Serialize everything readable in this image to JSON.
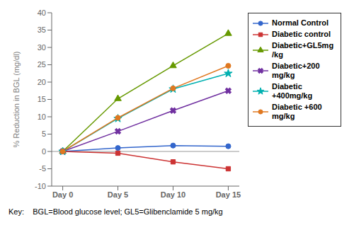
{
  "chart_data": {
    "type": "line",
    "x": [
      0,
      5,
      10,
      15
    ],
    "xlim": [
      -1,
      16
    ],
    "xticks": [
      {
        "value": 0,
        "label": "Day 0"
      },
      {
        "value": 5,
        "label": "Day 5"
      },
      {
        "value": 10,
        "label": "Day 10"
      },
      {
        "value": 15,
        "label": "Day 15"
      }
    ],
    "ylim": [
      -10,
      40
    ],
    "yticks": [
      -10,
      -5,
      0,
      5,
      10,
      15,
      20,
      25,
      30,
      35,
      40
    ],
    "ylabel": "% Reduction in BGL (mg/dl)",
    "hlines": [
      0
    ],
    "series": [
      {
        "name": "Normal Control",
        "values": [
          0,
          1,
          1.7,
          1.5
        ],
        "color": "#3366cc",
        "marker": "circle",
        "line_style": "solid"
      },
      {
        "name": "Diabetic control",
        "values": [
          0,
          -0.5,
          -3.0,
          -5.0
        ],
        "color": "#cc3333",
        "marker": "square",
        "line_style": "solid"
      },
      {
        "name": "Diabetic+GL5mg\n/kg",
        "values": [
          0,
          15.2,
          24.7,
          34.0
        ],
        "color": "#669900",
        "marker": "triangle",
        "line_style": "solid"
      },
      {
        "name": "Diabetic+200\nmg/kg",
        "values": [
          0,
          5.8,
          11.8,
          17.5
        ],
        "color": "#7030a0",
        "marker": "x",
        "line_style": "solid"
      },
      {
        "name": "Diabetic\n+400mg/kg",
        "values": [
          0,
          9.5,
          18.0,
          22.5
        ],
        "color": "#00b0b0",
        "marker": "star",
        "line_style": "solid"
      },
      {
        "name": "Diabetic +600\nmg/kg",
        "values": [
          0,
          9.7,
          18.2,
          24.7
        ],
        "color": "#e07820",
        "marker": "circle",
        "line_style": "solid"
      }
    ],
    "annotation": "Key:    BGL=Blood glucose level; GL5=Glibenclamide 5 mg/kg",
    "grid": false,
    "legend": "right"
  }
}
